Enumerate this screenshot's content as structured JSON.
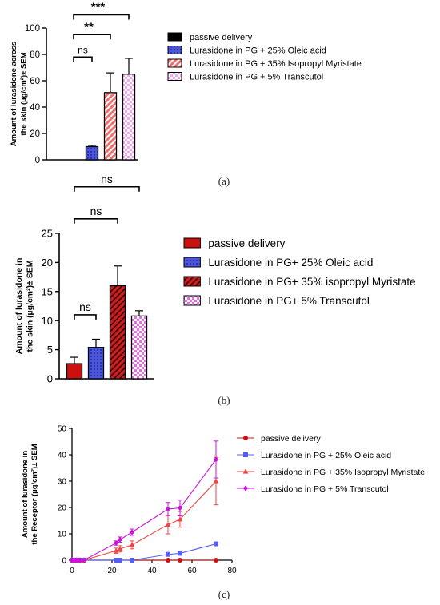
{
  "panels": [
    {
      "id": "a",
      "label": "(a)"
    },
    {
      "id": "b",
      "label": "(b)"
    },
    {
      "id": "c",
      "label": "(c)"
    }
  ],
  "chart_data": [
    {
      "type": "bar",
      "panel": "a",
      "ylabel_line1": "Amount of lurasidone across",
      "ylabel_line2": "the skin (µg/cm²)± SEM",
      "ylim": [
        0,
        100
      ],
      "yticks": [
        0,
        20,
        40,
        60,
        80,
        100
      ],
      "legend_placement": "right",
      "series": [
        {
          "name": "passive delivery",
          "value": 0,
          "error": 0,
          "fill": "#000000",
          "pattern": "solid"
        },
        {
          "name": "Lurasidone in PG + 25% Oleic acid",
          "value": 10,
          "error": 1,
          "fill": "#4a56e0",
          "pattern": "dots"
        },
        {
          "name": "Lurasidone in PG + 35% Isopropyl Myristate",
          "value": 51,
          "error": 15,
          "fill": "#f07070",
          "pattern": "stripes"
        },
        {
          "name": "Lurasidone in PG + 5% Transcutol",
          "value": 65,
          "error": 12,
          "fill": "#f0a8f0",
          "pattern": "checker"
        }
      ],
      "significance": [
        {
          "from": 0,
          "to": 1,
          "text": "ns",
          "y": 78
        },
        {
          "from": 0,
          "to": 2,
          "text": "**",
          "y": 95
        },
        {
          "from": 0,
          "to": 3,
          "text": "***",
          "y": 110
        }
      ]
    },
    {
      "type": "bar",
      "panel": "b",
      "ylabel_line1": "Amount of lurasidone in",
      "ylabel_line2": "the skin (µg/cm²)± SEM",
      "ylim": [
        0,
        25
      ],
      "yticks": [
        0,
        5,
        10,
        15,
        20,
        25
      ],
      "legend_placement": "right",
      "series": [
        {
          "name": "passive delivery",
          "value": 2.6,
          "error": 1.1,
          "fill": "#cc1010",
          "pattern": "solid"
        },
        {
          "name": "Lurasidone in PG+ 25% Oleic acid",
          "value": 5.4,
          "error": 1.4,
          "fill": "#4a56e0",
          "pattern": "dots"
        },
        {
          "name": "Lurasidone in PG+ 35% isopropyl Myristate",
          "value": 16,
          "error": 3.4,
          "fill": "#c82020",
          "pattern": "stripes"
        },
        {
          "name": "Lurasidone in PG+ 5% Transcutol",
          "value": 10.8,
          "error": 0.9,
          "fill": "#e070e0",
          "pattern": "checker"
        }
      ],
      "significance": [
        {
          "from": 0,
          "to": 1,
          "text": "ns",
          "y": 11
        },
        {
          "from": 0,
          "to": 2,
          "text": "ns",
          "y": 27.5
        },
        {
          "from": 0,
          "to": 3,
          "text": "ns",
          "y": 33
        }
      ]
    },
    {
      "type": "line",
      "panel": "c",
      "ylabel_line1": "Amount of lurasidone in",
      "ylabel_line2": "the Receptor (µg/cm²)± SEM",
      "xlim": [
        0,
        80
      ],
      "ylim": [
        0,
        50
      ],
      "xticks": [
        0,
        20,
        40,
        60,
        80
      ],
      "yticks": [
        0,
        10,
        20,
        30,
        40,
        50
      ],
      "legend_placement": "top-right",
      "series": [
        {
          "name": "passive delivery",
          "color": "#cc1010",
          "marker": "circle",
          "x": [
            0,
            1,
            2,
            3,
            4,
            6,
            22,
            24,
            30,
            48,
            54,
            72
          ],
          "y": [
            0,
            0,
            0,
            0,
            0,
            0,
            0,
            0,
            0,
            0,
            0,
            0
          ],
          "err": [
            0,
            0,
            0,
            0,
            0,
            0,
            0,
            0,
            0,
            0,
            0,
            0
          ]
        },
        {
          "name": "Lurasidone in PG + 25% Oleic acid",
          "color": "#5560f0",
          "marker": "square",
          "x": [
            0,
            1,
            2,
            3,
            4,
            6,
            22,
            24,
            30,
            48,
            54,
            72
          ],
          "y": [
            0,
            0,
            0,
            0,
            0,
            0,
            0,
            0,
            0,
            2.2,
            2.6,
            6.2
          ],
          "err": [
            0,
            0,
            0,
            0,
            0,
            0,
            0,
            0,
            0,
            0.3,
            0.3,
            0.4
          ]
        },
        {
          "name": "Lurasidone in PG + 35% Isopropyl Myristate",
          "color": "#f04545",
          "marker": "triangle",
          "x": [
            0,
            1,
            2,
            3,
            4,
            6,
            22,
            24,
            30,
            48,
            54,
            72
          ],
          "y": [
            0,
            0,
            0,
            0,
            0,
            0,
            3.6,
            4.3,
            5.8,
            13.5,
            15.5,
            30
          ],
          "err": [
            0,
            0,
            0,
            0,
            0,
            0,
            1.0,
            1.2,
            1.5,
            3.5,
            3.0,
            9.0
          ]
        },
        {
          "name": "Lurasidone in PG + 5% Transcutol",
          "color": "#cc10dd",
          "marker": "diamond",
          "x": [
            0,
            1,
            2,
            3,
            4,
            6,
            22,
            24,
            30,
            48,
            54,
            72
          ],
          "y": [
            0,
            0,
            0,
            0,
            0,
            0,
            6.5,
            7.8,
            10.6,
            19.4,
            19.8,
            38.2
          ],
          "err": [
            0,
            0,
            0,
            0,
            0,
            0,
            0.8,
            1.0,
            1.2,
            2.5,
            3.0,
            7.0
          ]
        }
      ]
    }
  ]
}
